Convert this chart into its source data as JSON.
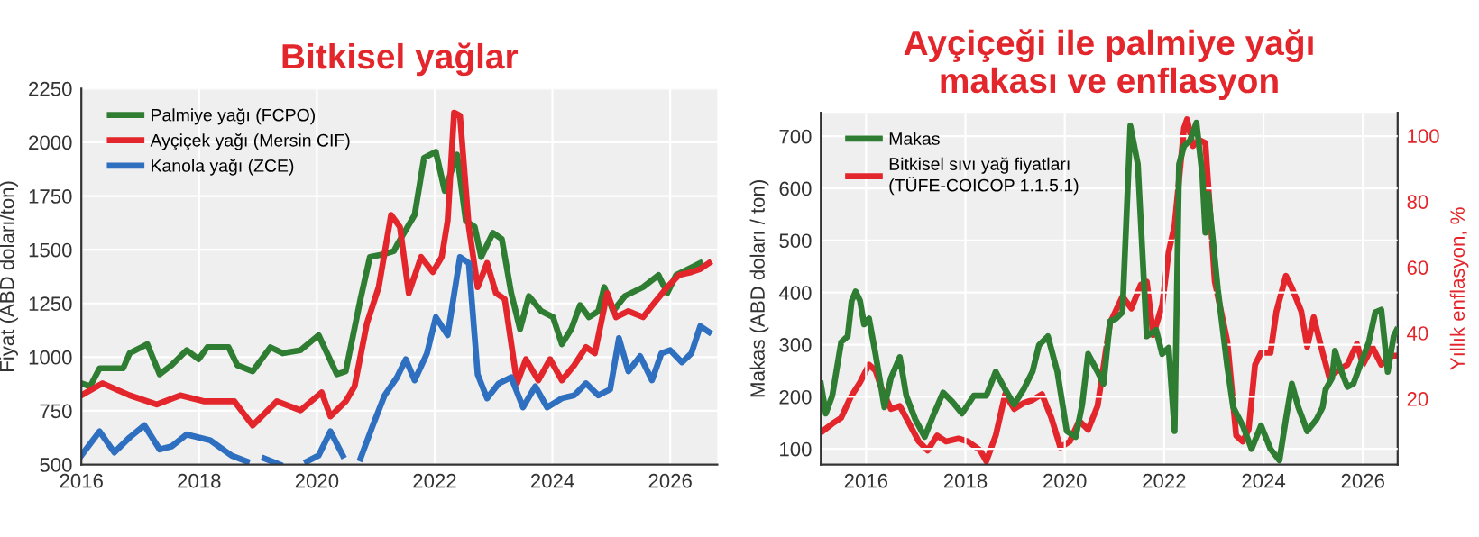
{
  "chart_data": [
    {
      "type": "line",
      "title": "Bitkisel yağlar",
      "ylabel": "Fiyat (ABD doları/ton)",
      "xlim": [
        2016,
        2026.8
      ],
      "xticks": [
        2016,
        2018,
        2020,
        2022,
        2024,
        2026
      ],
      "ylim": [
        500,
        2250
      ],
      "yticks": [
        500,
        750,
        1000,
        1250,
        1500,
        1750,
        2000,
        2250
      ],
      "grid": true,
      "legend": "top left",
      "series": [
        {
          "name": "Palmiye yağı (FCPO)",
          "color": "#2f7d32",
          "x": [
            2016.0,
            2016.15,
            2016.31,
            2016.71,
            2016.82,
            2017.02,
            2017.12,
            2017.33,
            2017.53,
            2017.79,
            2017.99,
            2018.14,
            2018.5,
            2018.65,
            2018.91,
            2019.21,
            2019.42,
            2019.72,
            2020.03,
            2020.34,
            2020.49,
            2020.74,
            2020.9,
            2021.15,
            2021.31,
            2021.36,
            2021.66,
            2021.82,
            2022.02,
            2022.17,
            2022.38,
            2022.53,
            2022.68,
            2022.79,
            2022.99,
            2023.14,
            2023.3,
            2023.45,
            2023.6,
            2023.81,
            2024.01,
            2024.16,
            2024.32,
            2024.47,
            2024.62,
            2024.78,
            2024.88,
            2025.03,
            2025.23,
            2025.54,
            2025.8,
            2025.95,
            2026.1,
            2026.31,
            2026.51
          ],
          "values": [
            878,
            864,
            948,
            948,
            1018,
            1046,
            1060,
            920,
            962,
            1032,
            990,
            1046,
            1046,
            962,
            934,
            1046,
            1018,
            1032,
            1102,
            920,
            934,
            1270,
            1466,
            1480,
            1494,
            1522,
            1662,
            1928,
            1956,
            1774,
            1942,
            1634,
            1606,
            1466,
            1578,
            1550,
            1298,
            1130,
            1284,
            1214,
            1186,
            1060,
            1130,
            1242,
            1186,
            1214,
            1326,
            1214,
            1284,
            1326,
            1382,
            1298,
            1382,
            1410,
            1438
          ]
        },
        {
          "name": "Ayçiçek yağı (Mersin CIF)",
          "color": "#e3262b",
          "x": [
            2016.0,
            2016.36,
            2016.82,
            2017.28,
            2017.68,
            2018.09,
            2018.6,
            2018.91,
            2019.32,
            2019.72,
            2020.08,
            2020.23,
            2020.49,
            2020.64,
            2020.85,
            2021.05,
            2021.26,
            2021.41,
            2021.56,
            2021.77,
            2021.97,
            2022.12,
            2022.22,
            2022.33,
            2022.43,
            2022.58,
            2022.73,
            2022.89,
            2023.04,
            2023.19,
            2023.4,
            2023.55,
            2023.76,
            2023.96,
            2024.16,
            2024.37,
            2024.57,
            2024.72,
            2024.93,
            2025.08,
            2025.29,
            2025.54,
            2025.74,
            2025.95,
            2026.15,
            2026.36,
            2026.51,
            2026.66
          ],
          "values": [
            822,
            878,
            822,
            780,
            822,
            794,
            794,
            682,
            794,
            752,
            836,
            724,
            794,
            864,
            1158,
            1326,
            1662,
            1606,
            1298,
            1466,
            1396,
            1466,
            1634,
            2138,
            2124,
            1606,
            1326,
            1438,
            1298,
            1270,
            878,
            990,
            892,
            990,
            892,
            962,
            1046,
            1018,
            1298,
            1186,
            1214,
            1186,
            1256,
            1326,
            1382,
            1396,
            1410,
            1438
          ]
        },
        {
          "name": "Kanola yağı (ZCE)",
          "color": "#2f6fc0",
          "x": [
            2016.0,
            2016.31,
            2016.56,
            2016.82,
            2017.07,
            2017.33,
            2017.53,
            2017.79,
            2017.99,
            2018.19,
            2018.55,
            2018.81,
            2019.01,
            2019.11,
            2019.37,
            2019.62,
            2019.83,
            2020.03,
            2020.23,
            2020.44,
            2020.64,
            2020.74,
            2020.95,
            2021.15,
            2021.36,
            2021.51,
            2021.66,
            2021.87,
            2022.02,
            2022.22,
            2022.43,
            2022.58,
            2022.73,
            2022.89,
            2023.09,
            2023.3,
            2023.5,
            2023.71,
            2023.91,
            2024.16,
            2024.37,
            2024.57,
            2024.78,
            2024.98,
            2025.13,
            2025.29,
            2025.49,
            2025.69,
            2025.85,
            2026.0,
            2026.2,
            2026.36,
            2026.51,
            2026.66
          ],
          "values": [
            542,
            654,
            556,
            626,
            682,
            570,
            584,
            640,
            626,
            612,
            542,
            514,
            null,
            528,
            500,
            null,
            514,
            542,
            654,
            542,
            null,
            528,
            682,
            822,
            906,
            990,
            892,
            1018,
            1186,
            1102,
            1466,
            1438,
            920,
            808,
            878,
            906,
            766,
            864,
            766,
            808,
            822,
            878,
            822,
            850,
            1088,
            934,
            1004,
            892,
            1018,
            1032,
            976,
            1018,
            1144,
            1116
          ]
        }
      ]
    },
    {
      "type": "line",
      "title": "Ayçiçeği ile palmiye yağı\nmakası ve enflasyon",
      "ylabel": "Makas (ABD doları / ton)",
      "y2label": "Yıllık enflasyon, %",
      "xlim": [
        2015.09,
        2026.7
      ],
      "xticks": [
        2016,
        2018,
        2020,
        2022,
        2024,
        2026
      ],
      "ylim": [
        70,
        745
      ],
      "yticks": [
        100,
        200,
        300,
        400,
        500,
        600,
        700
      ],
      "y2lim": [
        0,
        107
      ],
      "y2ticks": [
        20,
        40,
        60,
        80,
        100
      ],
      "grid": true,
      "legend": "top left",
      "series": [
        {
          "name": "Makas",
          "color": "#2f7d32",
          "x": [
            2015.09,
            2015.19,
            2015.32,
            2015.5,
            2015.63,
            2015.71,
            2015.79,
            2015.88,
            2015.96,
            2016.06,
            2016.19,
            2016.37,
            2016.5,
            2016.68,
            2016.81,
            2016.99,
            2017.18,
            2017.37,
            2017.55,
            2017.74,
            2017.93,
            2018.05,
            2018.17,
            2018.42,
            2018.61,
            2018.8,
            2018.98,
            2019.17,
            2019.35,
            2019.48,
            2019.66,
            2019.85,
            2020.04,
            2020.22,
            2020.35,
            2020.47,
            2020.66,
            2020.78,
            2020.91,
            2021.03,
            2021.16,
            2021.32,
            2021.47,
            2021.65,
            2021.84,
            2021.96,
            2022.09,
            2022.21,
            2022.3,
            2022.4,
            2022.52,
            2022.65,
            2022.77,
            2022.83,
            2022.89,
            2023.08,
            2023.27,
            2023.39,
            2023.58,
            2023.76,
            2023.95,
            2024.14,
            2024.32,
            2024.45,
            2024.57,
            2024.7,
            2024.88,
            2025.07,
            2025.19,
            2025.25,
            2025.38,
            2025.44,
            2025.57,
            2025.69,
            2025.81,
            2025.94,
            2026.12,
            2026.25,
            2026.37,
            2026.5,
            2026.62,
            2026.68
          ],
          "values": [
            225,
            168,
            202,
            305,
            316,
            384,
            402,
            384,
            339,
            350,
            282,
            180,
            236,
            276,
            202,
            157,
            123,
            168,
            208,
            190,
            168,
            185,
            202,
            202,
            248,
            214,
            185,
            214,
            248,
            299,
            316,
            248,
            134,
            123,
            185,
            282,
            248,
            225,
            345,
            350,
            362,
            720,
            646,
            316,
            328,
            282,
            294,
            134,
            646,
            681,
            692,
            726,
            624,
            515,
            589,
            407,
            259,
            180,
            145,
            100,
            145,
            100,
            78,
            157,
            225,
            180,
            134,
            157,
            180,
            214,
            236,
            288,
            248,
            219,
            225,
            259,
            305,
            362,
            367,
            248,
            316,
            328
          ]
        },
        {
          "name": "Bitkisel sıvı yağ fiyatları\n(TÜFE-COICOP 1.1.5.1)",
          "color": "#e3262b",
          "axis": "y2",
          "x": [
            2015.09,
            2015.32,
            2015.5,
            2015.69,
            2015.88,
            2016.06,
            2016.19,
            2016.31,
            2016.5,
            2016.68,
            2016.87,
            2017.06,
            2017.24,
            2017.43,
            2017.61,
            2017.86,
            2018.05,
            2018.3,
            2018.42,
            2018.61,
            2018.8,
            2018.98,
            2019.17,
            2019.35,
            2019.54,
            2019.73,
            2019.91,
            2020.1,
            2020.29,
            2020.47,
            2020.66,
            2020.91,
            2021.16,
            2021.34,
            2021.53,
            2021.65,
            2021.78,
            2021.96,
            2022.09,
            2022.21,
            2022.4,
            2022.46,
            2022.58,
            2022.71,
            2022.83,
            2023.02,
            2023.27,
            2023.45,
            2023.58,
            2023.7,
            2023.83,
            2023.95,
            2024.14,
            2024.26,
            2024.45,
            2024.57,
            2024.76,
            2024.88,
            2025.01,
            2025.19,
            2025.32,
            2025.5,
            2025.69,
            2025.88,
            2026.0,
            2026.19,
            2026.37,
            2026.56,
            2026.68
          ],
          "values": [
            9.7,
            12.4,
            14.2,
            20.5,
            25,
            30.4,
            28.6,
            23.2,
            16.9,
            17.8,
            12.4,
            7,
            4.3,
            8.8,
            7,
            7.9,
            7,
            4.3,
            1,
            8.8,
            21.4,
            16.9,
            18.7,
            19.6,
            21.4,
            14.2,
            5.2,
            7,
            13.3,
            10.6,
            17.8,
            43,
            51.1,
            47.5,
            54.7,
            55.6,
            39.4,
            48.4,
            64.6,
            72.7,
            102.3,
            105,
            96.9,
            98.7,
            97.8,
            55.6,
            37.6,
            8.8,
            7,
            10.6,
            30.4,
            34,
            34,
            46.6,
            57.4,
            53.8,
            46.6,
            35.8,
            44.8,
            34,
            26.8,
            28.6,
            30.4,
            36.7,
            30.4,
            35.8,
            30.4,
            33.1,
            33.1
          ]
        }
      ]
    }
  ]
}
